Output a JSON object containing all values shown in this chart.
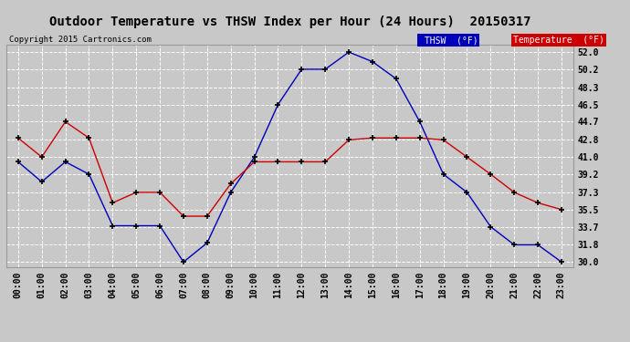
{
  "title": "Outdoor Temperature vs THSW Index per Hour (24 Hours)  20150317",
  "copyright": "Copyright 2015 Cartronics.com",
  "hours": [
    "00:00",
    "01:00",
    "02:00",
    "03:00",
    "04:00",
    "05:00",
    "06:00",
    "07:00",
    "08:00",
    "09:00",
    "10:00",
    "11:00",
    "12:00",
    "13:00",
    "14:00",
    "15:00",
    "16:00",
    "17:00",
    "18:00",
    "19:00",
    "20:00",
    "21:00",
    "22:00",
    "23:00"
  ],
  "thsw": [
    40.5,
    38.4,
    40.5,
    39.2,
    33.8,
    33.8,
    33.8,
    30.0,
    32.0,
    37.3,
    41.0,
    46.5,
    50.2,
    50.2,
    52.0,
    51.0,
    49.2,
    44.7,
    39.2,
    37.3,
    33.7,
    31.8,
    31.8,
    30.0
  ],
  "temperature": [
    43.0,
    41.0,
    44.7,
    43.0,
    36.2,
    37.3,
    37.3,
    34.8,
    34.8,
    38.2,
    40.5,
    40.5,
    40.5,
    40.5,
    42.8,
    43.0,
    43.0,
    43.0,
    42.8,
    41.0,
    39.2,
    37.3,
    36.2,
    35.5
  ],
  "ylim_min": 29.5,
  "ylim_max": 52.8,
  "yticks": [
    30.0,
    31.8,
    33.7,
    35.5,
    37.3,
    39.2,
    41.0,
    42.8,
    44.7,
    46.5,
    48.3,
    50.2,
    52.0
  ],
  "thsw_color": "#0000bb",
  "temp_color": "#cc0000",
  "bg_color": "#c8c8c8",
  "grid_color": "#ffffff",
  "legend_thsw_bg": "#0000bb",
  "legend_temp_bg": "#cc0000",
  "title_fontsize": 10,
  "tick_fontsize": 7
}
